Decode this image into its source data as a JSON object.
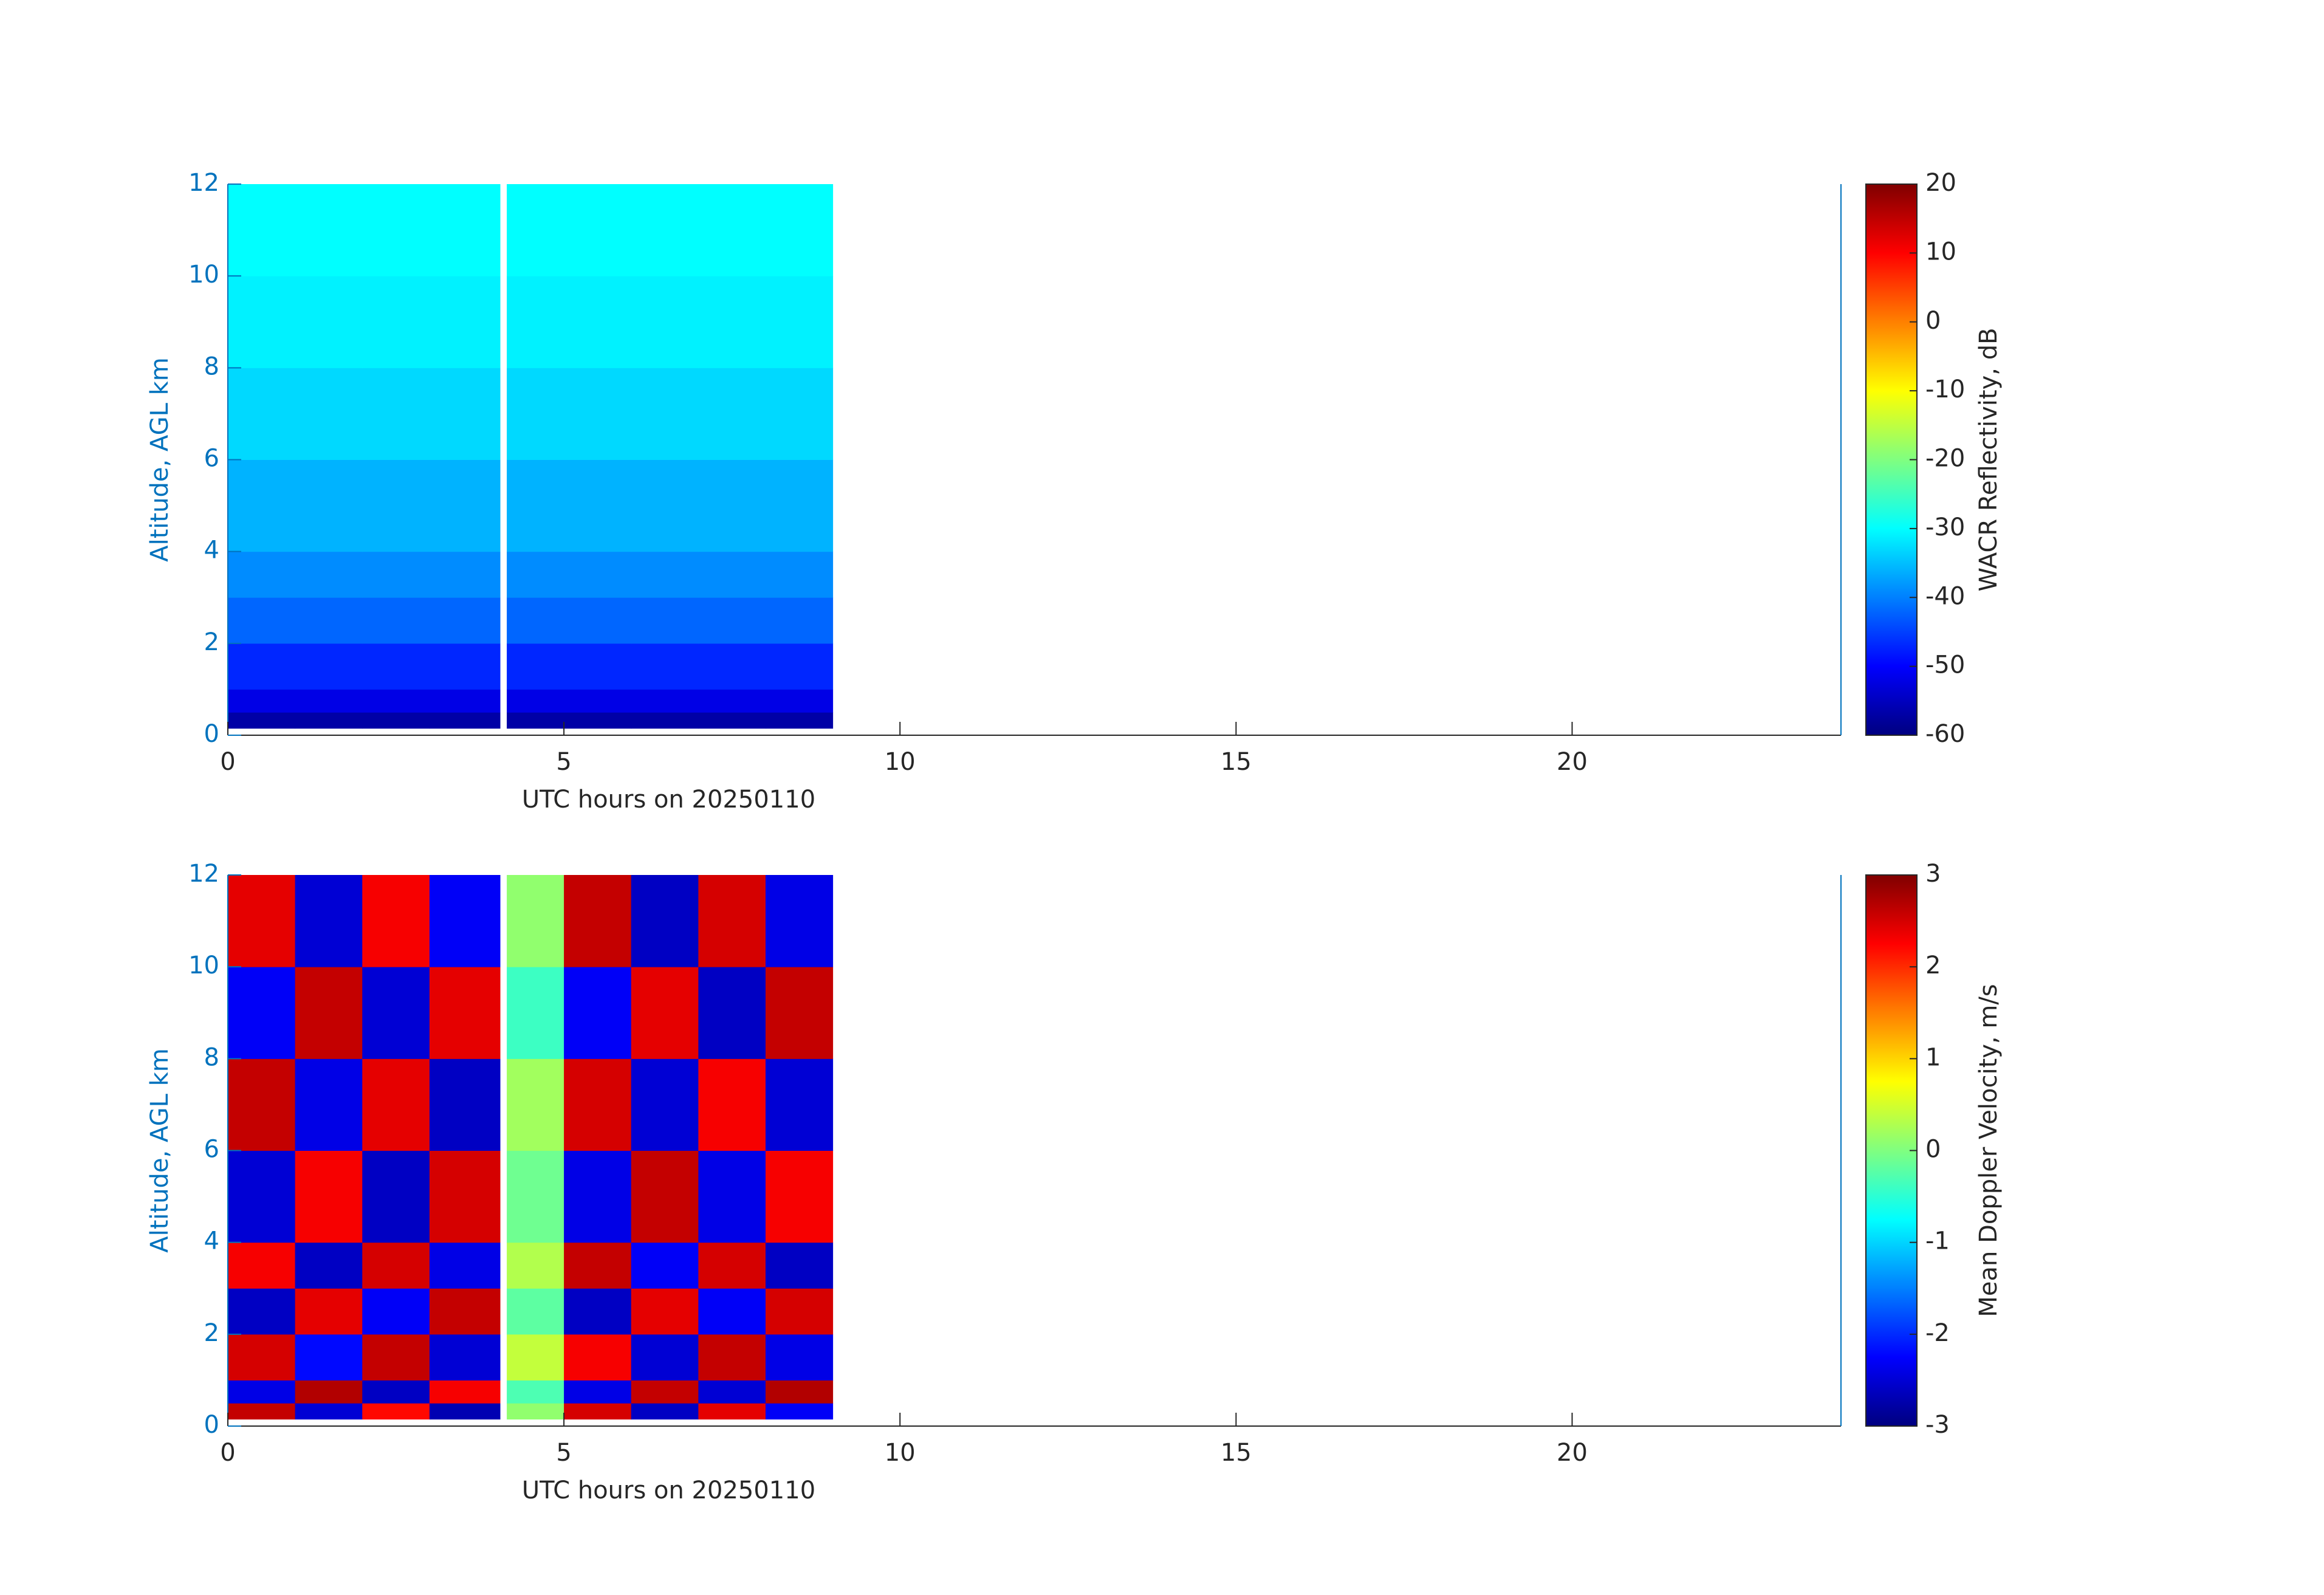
{
  "chart_data": [
    {
      "type": "heatmap",
      "colormap": "jet",
      "xlabel": "UTC hours on 20250110",
      "ylabel": "Altitude, AGL km",
      "colorbar_label": "WACR Reflectivity, dB",
      "x_edges": [
        0,
        1,
        2,
        3,
        4.05,
        4.15,
        5,
        6,
        7,
        8,
        9
      ],
      "y_edges": [
        0.15,
        0.5,
        1,
        2,
        3,
        4,
        6,
        8,
        10,
        12
      ],
      "values": [
        [
          -57,
          -57,
          -57,
          -57,
          null,
          -57,
          -57,
          -57,
          -57,
          -57
        ],
        [
          -52,
          -52,
          -52,
          -52,
          null,
          -52,
          -52,
          -52,
          -52,
          -52
        ],
        [
          -47,
          -47,
          -47,
          -47,
          null,
          -47,
          -47,
          -47,
          -47,
          -47
        ],
        [
          -42,
          -42,
          -42,
          -42,
          null,
          -42,
          -42,
          -42,
          -42,
          -42
        ],
        [
          -39,
          -39,
          -39,
          -39,
          null,
          -39,
          -39,
          -39,
          -39,
          -39
        ],
        [
          -36,
          -36,
          -36,
          -36,
          null,
          -36,
          -36,
          -36,
          -36,
          -36
        ],
        [
          -33,
          -33,
          -33,
          -33,
          null,
          -33,
          -33,
          -33,
          -33,
          -33
        ],
        [
          -31,
          -31,
          -31,
          -31,
          null,
          -31,
          -31,
          -31,
          -31,
          -31
        ],
        [
          -30,
          -30,
          -30,
          -30,
          null,
          -30,
          -30,
          -30,
          -30,
          -30
        ]
      ],
      "xlim": [
        0,
        24
      ],
      "xticks": [
        0,
        5,
        10,
        15,
        20
      ],
      "ylim": [
        0,
        12
      ],
      "yticks": [
        0,
        2,
        4,
        6,
        8,
        10,
        12
      ],
      "clim": [
        -60,
        20
      ],
      "cticks": [
        -60,
        -50,
        -40,
        -30,
        -20,
        -10,
        0,
        10,
        20
      ]
    },
    {
      "type": "heatmap",
      "colormap": "jet",
      "xlabel": "UTC hours on 20250110",
      "ylabel": "Altitude, AGL km",
      "colorbar_label": "Mean Doppler Velocity, m/s",
      "x_edges": [
        0,
        1,
        2,
        3,
        4.05,
        4.15,
        5,
        6,
        7,
        8,
        9
      ],
      "y_edges": [
        0.15,
        0.5,
        1,
        2,
        3,
        4,
        6,
        8,
        10,
        12
      ],
      "values": [
        [
          2.6,
          -2.5,
          2.2,
          -2.7,
          null,
          0.1,
          2.5,
          -2.6,
          2.4,
          -2.3
        ],
        [
          -2.4,
          2.7,
          -2.6,
          2.3,
          null,
          -0.3,
          -2.4,
          2.6,
          -2.5,
          2.7
        ],
        [
          2.5,
          -2.2,
          2.6,
          -2.5,
          null,
          0.4,
          2.3,
          -2.5,
          2.6,
          -2.4
        ],
        [
          -2.6,
          2.4,
          -2.3,
          2.6,
          null,
          -0.2,
          -2.6,
          2.4,
          -2.3,
          2.5
        ],
        [
          2.3,
          -2.6,
          2.5,
          -2.4,
          null,
          0.3,
          2.6,
          -2.3,
          2.5,
          -2.6
        ],
        [
          -2.5,
          2.3,
          -2.6,
          2.5,
          null,
          -0.1,
          -2.4,
          2.6,
          -2.4,
          2.3
        ],
        [
          2.6,
          -2.4,
          2.4,
          -2.6,
          null,
          0.2,
          2.5,
          -2.5,
          2.3,
          -2.5
        ],
        [
          -2.3,
          2.6,
          -2.5,
          2.4,
          null,
          -0.4,
          -2.3,
          2.4,
          -2.6,
          2.6
        ],
        [
          2.4,
          -2.5,
          2.3,
          -2.3,
          null,
          0.1,
          2.6,
          -2.6,
          2.5,
          -2.4
        ]
      ],
      "xlim": [
        0,
        24
      ],
      "xticks": [
        0,
        5,
        10,
        15,
        20
      ],
      "ylim": [
        0,
        12
      ],
      "yticks": [
        0,
        2,
        4,
        6,
        8,
        10,
        12
      ],
      "clim": [
        -3,
        3
      ],
      "cticks": [
        -3,
        -2,
        -1,
        0,
        1,
        2,
        3
      ]
    }
  ]
}
